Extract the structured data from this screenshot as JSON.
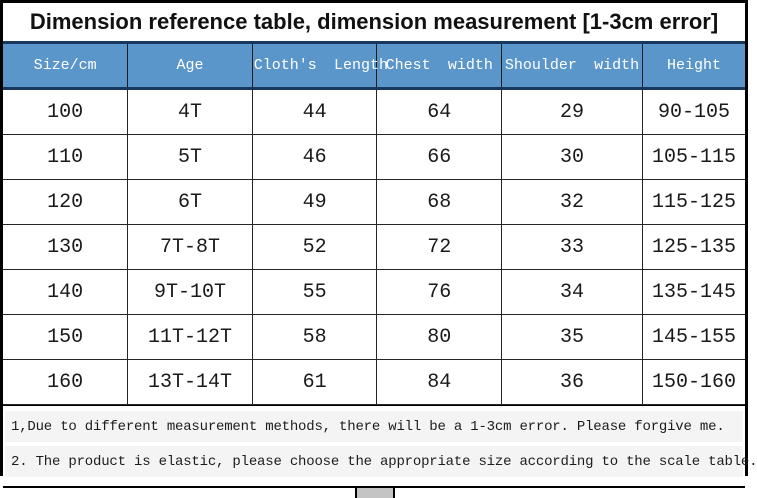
{
  "chart_data": {
    "type": "table",
    "title": "Dimension reference table, dimension measurement [1-3cm error]",
    "columns": [
      "Size/cm",
      "Age",
      "Cloth's Length",
      "Chest width",
      "Shoulder width",
      "Height"
    ],
    "rows": [
      [
        "100",
        "4T",
        "44",
        "64",
        "29",
        "90-105"
      ],
      [
        "110",
        "5T",
        "46",
        "66",
        "30",
        "105-115"
      ],
      [
        "120",
        "6T",
        "49",
        "68",
        "32",
        "115-125"
      ],
      [
        "130",
        "7T-8T",
        "52",
        "72",
        "33",
        "125-135"
      ],
      [
        "140",
        "9T-10T",
        "55",
        "76",
        "34",
        "135-145"
      ],
      [
        "150",
        "11T-12T",
        "58",
        "80",
        "35",
        "145-155"
      ],
      [
        "160",
        "13T-14T",
        "61",
        "84",
        "36",
        "150-160"
      ]
    ],
    "units_note": "1-3cm error"
  },
  "notes": [
    "1,Due to different measurement methods, there will be a 1-3cm error. Please forgive me.",
    "2. The product is elastic, please choose the appropriate size according to the scale table."
  ],
  "colors": {
    "header_bg": "#5b96cb",
    "header_accent_border": "#17375d",
    "header_text": "#ffffff",
    "grid_line": "#262626",
    "outer_border": "#000000",
    "note_highlight": "#f4f4f4"
  }
}
